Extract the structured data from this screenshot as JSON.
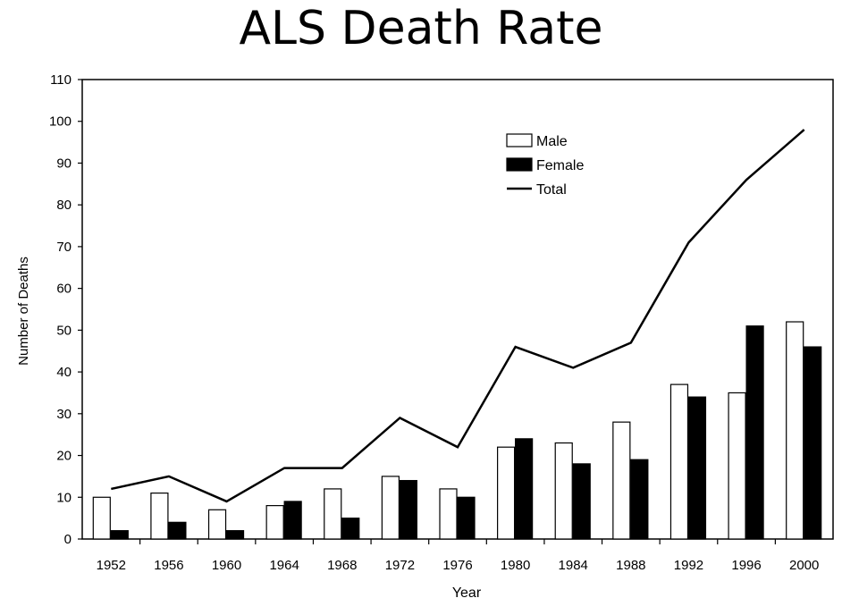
{
  "page_title": "ALS Death Rate",
  "chart_data": {
    "type": "bar",
    "title": "ALS Death Rate",
    "xlabel": "Year",
    "ylabel": "Number of Deaths",
    "ylim": [
      0,
      110
    ],
    "yticks": [
      0,
      10,
      20,
      30,
      40,
      50,
      60,
      70,
      80,
      90,
      100,
      110
    ],
    "categories": [
      "1952",
      "1956",
      "1960",
      "1964",
      "1968",
      "1972",
      "1976",
      "1980",
      "1984",
      "1988",
      "1992",
      "1996",
      "2000"
    ],
    "series": [
      {
        "name": "Male",
        "kind": "bar",
        "color": "#ffffff",
        "values": [
          10,
          11,
          7,
          8,
          12,
          15,
          12,
          22,
          23,
          28,
          37,
          35,
          52
        ]
      },
      {
        "name": "Female",
        "kind": "bar",
        "color": "#000000",
        "values": [
          2,
          4,
          2,
          9,
          5,
          14,
          10,
          24,
          18,
          19,
          34,
          51,
          46
        ]
      },
      {
        "name": "Total",
        "kind": "line",
        "color": "#000000",
        "values": [
          12,
          15,
          9,
          17,
          17,
          29,
          22,
          46,
          41,
          47,
          71,
          86,
          98
        ]
      }
    ],
    "legend_position": "top-right",
    "grid": false
  }
}
